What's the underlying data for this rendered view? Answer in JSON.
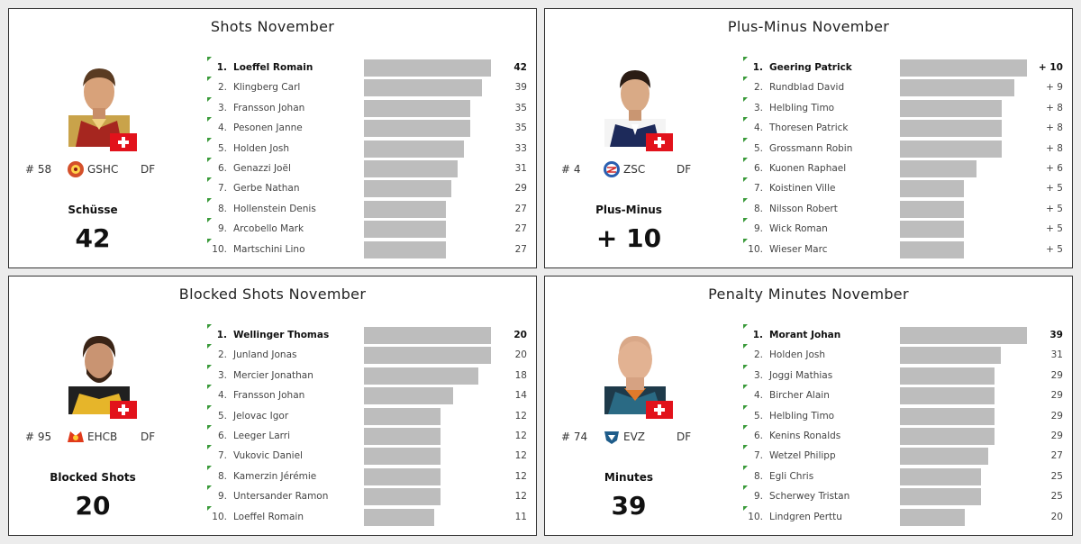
{
  "chart_data": [
    {
      "type": "bar",
      "orientation": "horizontal",
      "title": "Shots November",
      "featured": {
        "number": "# 58",
        "team": "GSHC",
        "position": "DF",
        "stat_label": "Schüsse",
        "stat_value": "42"
      },
      "xlim": [
        0,
        42
      ],
      "rows": [
        {
          "rank": "1.",
          "name": "Loeffel Romain",
          "value": 42,
          "label": "42"
        },
        {
          "rank": "2.",
          "name": "Klingberg Carl",
          "value": 39,
          "label": "39"
        },
        {
          "rank": "3.",
          "name": "Fransson Johan",
          "value": 35,
          "label": "35"
        },
        {
          "rank": "4.",
          "name": "Pesonen Janne",
          "value": 35,
          "label": "35"
        },
        {
          "rank": "5.",
          "name": "Holden Josh",
          "value": 33,
          "label": "33"
        },
        {
          "rank": "6.",
          "name": "Genazzi Joël",
          "value": 31,
          "label": "31"
        },
        {
          "rank": "7.",
          "name": "Gerbe Nathan",
          "value": 29,
          "label": "29"
        },
        {
          "rank": "8.",
          "name": "Hollenstein Denis",
          "value": 27,
          "label": "27"
        },
        {
          "rank": "9.",
          "name": "Arcobello Mark",
          "value": 27,
          "label": "27"
        },
        {
          "rank": "10.",
          "name": "Martschini Lino",
          "value": 27,
          "label": "27"
        }
      ]
    },
    {
      "type": "bar",
      "orientation": "horizontal",
      "title": "Plus-Minus November",
      "featured": {
        "number": "# 4",
        "team": "ZSC",
        "position": "DF",
        "stat_label": "Plus-Minus",
        "stat_value": "+ 10"
      },
      "xlim": [
        0,
        10
      ],
      "rows": [
        {
          "rank": "1.",
          "name": "Geering Patrick",
          "value": 10,
          "label": "+ 10"
        },
        {
          "rank": "2.",
          "name": "Rundblad David",
          "value": 9,
          "label": "+ 9"
        },
        {
          "rank": "3.",
          "name": "Helbling Timo",
          "value": 8,
          "label": "+ 8"
        },
        {
          "rank": "4.",
          "name": "Thoresen Patrick",
          "value": 8,
          "label": "+ 8"
        },
        {
          "rank": "5.",
          "name": "Grossmann Robin",
          "value": 8,
          "label": "+ 8"
        },
        {
          "rank": "6.",
          "name": "Kuonen Raphael",
          "value": 6,
          "label": "+ 6"
        },
        {
          "rank": "7.",
          "name": "Koistinen Ville",
          "value": 5,
          "label": "+ 5"
        },
        {
          "rank": "8.",
          "name": "Nilsson Robert",
          "value": 5,
          "label": "+ 5"
        },
        {
          "rank": "9.",
          "name": "Wick Roman",
          "value": 5,
          "label": "+ 5"
        },
        {
          "rank": "10.",
          "name": "Wieser Marc",
          "value": 5,
          "label": "+ 5"
        }
      ]
    },
    {
      "type": "bar",
      "orientation": "horizontal",
      "title": "Blocked Shots November",
      "featured": {
        "number": "# 95",
        "team": "EHCB",
        "position": "DF",
        "stat_label": "Blocked Shots",
        "stat_value": "20"
      },
      "xlim": [
        0,
        20
      ],
      "rows": [
        {
          "rank": "1.",
          "name": "Wellinger Thomas",
          "value": 20,
          "label": "20"
        },
        {
          "rank": "2.",
          "name": "Junland Jonas",
          "value": 20,
          "label": "20"
        },
        {
          "rank": "3.",
          "name": "Mercier Jonathan",
          "value": 18,
          "label": "18"
        },
        {
          "rank": "4.",
          "name": "Fransson Johan",
          "value": 14,
          "label": "14"
        },
        {
          "rank": "5.",
          "name": "Jelovac Igor",
          "value": 12,
          "label": "12"
        },
        {
          "rank": "6.",
          "name": "Leeger Larri",
          "value": 12,
          "label": "12"
        },
        {
          "rank": "7.",
          "name": "Vukovic Daniel",
          "value": 12,
          "label": "12"
        },
        {
          "rank": "8.",
          "name": "Kamerzin Jérémie",
          "value": 12,
          "label": "12"
        },
        {
          "rank": "9.",
          "name": "Untersander Ramon",
          "value": 12,
          "label": "12"
        },
        {
          "rank": "10.",
          "name": "Loeffel Romain",
          "value": 11,
          "label": "11"
        }
      ]
    },
    {
      "type": "bar",
      "orientation": "horizontal",
      "title": "Penalty Minutes November",
      "featured": {
        "number": "# 74",
        "team": "EVZ",
        "position": "DF",
        "stat_label": "Minutes",
        "stat_value": "39"
      },
      "xlim": [
        0,
        39
      ],
      "rows": [
        {
          "rank": "1.",
          "name": "Morant Johan",
          "value": 39,
          "label": "39"
        },
        {
          "rank": "2.",
          "name": "Holden Josh",
          "value": 31,
          "label": "31"
        },
        {
          "rank": "3.",
          "name": "Joggi Mathias",
          "value": 29,
          "label": "29"
        },
        {
          "rank": "4.",
          "name": "Bircher Alain",
          "value": 29,
          "label": "29"
        },
        {
          "rank": "5.",
          "name": "Helbling Timo",
          "value": 29,
          "label": "29"
        },
        {
          "rank": "6.",
          "name": "Kenins Ronalds",
          "value": 29,
          "label": "29"
        },
        {
          "rank": "7.",
          "name": "Wetzel Philipp",
          "value": 27,
          "label": "27"
        },
        {
          "rank": "8.",
          "name": "Egli Chris",
          "value": 25,
          "label": "25"
        },
        {
          "rank": "9.",
          "name": "Scherwey Tristan",
          "value": 25,
          "label": "25"
        },
        {
          "rank": "10.",
          "name": "Lindgren Perttu",
          "value": 20,
          "label": "20"
        }
      ]
    }
  ],
  "colors": {
    "bar": "#bdbdbd",
    "rank_marker": "#3a9a3a",
    "flag": "#e2121b"
  },
  "team_logos": [
    "gshc-logo-icon",
    "zsc-logo-icon",
    "ehcb-logo-icon",
    "evz-logo-icon"
  ]
}
